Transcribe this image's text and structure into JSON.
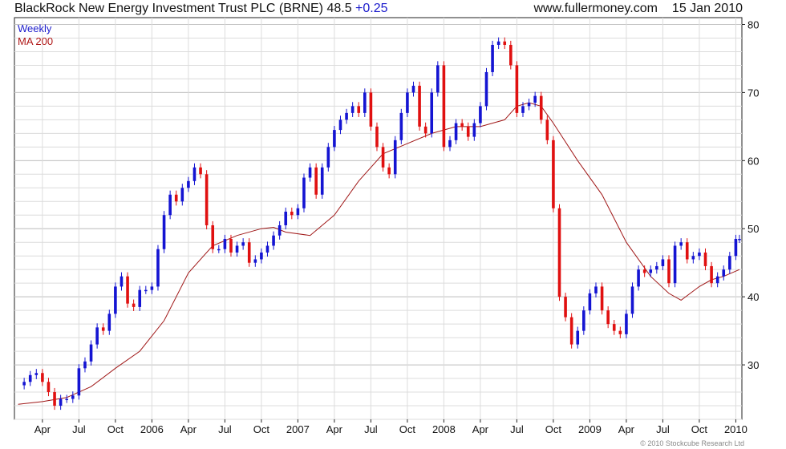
{
  "header": {
    "title": "BlackRock New Energy Investment Trust PLC (BRNE) 48.5",
    "change": "+0.25",
    "site": "www.fullermoney.com",
    "date": "15 Jan 2010"
  },
  "legend": {
    "line1": "Weekly",
    "line2": "MA 200"
  },
  "footer": {
    "copyright": "© 2010 Stockcube Research Ltd"
  },
  "colors": {
    "up": "#1414d2",
    "down": "#e01010",
    "ma": "#a01818",
    "grid": "#dcdcdc"
  },
  "chart_data": {
    "type": "line",
    "title": "BlackRock New Energy Investment Trust PLC (BRNE) 48.5 +0.25",
    "frequency": "Weekly",
    "ylim": [
      22,
      81
    ],
    "y_ticks": [
      30,
      40,
      50,
      60,
      70,
      80
    ],
    "x_ticks": [
      "Apr",
      "Jul",
      "Oct",
      "2006",
      "Apr",
      "Jul",
      "Oct",
      "2007",
      "Apr",
      "Jul",
      "Oct",
      "2008",
      "Apr",
      "Jul",
      "Oct",
      "2009",
      "Apr",
      "Jul",
      "Oct",
      "2010"
    ],
    "x_tick_months": [
      2,
      5,
      8,
      11,
      14,
      17,
      20,
      23,
      26,
      29,
      32,
      35,
      38,
      41,
      44,
      47,
      50,
      53,
      56,
      59
    ],
    "x_range_months": [
      -0.3,
      59.5
    ],
    "price_series": {
      "name": "Weekly",
      "points": [
        [
          0.0,
          27.0
        ],
        [
          0.5,
          27.5
        ],
        [
          1.0,
          28.5
        ],
        [
          1.5,
          28.8
        ],
        [
          2.0,
          27.5
        ],
        [
          2.5,
          26.0
        ],
        [
          3.0,
          24.0
        ],
        [
          3.5,
          25.0
        ],
        [
          4.0,
          25.0
        ],
        [
          4.5,
          25.5
        ],
        [
          5.0,
          29.5
        ],
        [
          5.5,
          30.5
        ],
        [
          6.0,
          33.0
        ],
        [
          6.5,
          35.5
        ],
        [
          7.0,
          35.0
        ],
        [
          7.5,
          37.5
        ],
        [
          8.0,
          41.5
        ],
        [
          8.5,
          43.0
        ],
        [
          9.0,
          39.0
        ],
        [
          9.5,
          38.5
        ],
        [
          10.0,
          41.0
        ],
        [
          10.5,
          41.0
        ],
        [
          11.0,
          41.5
        ],
        [
          11.5,
          47.0
        ],
        [
          12.0,
          52.0
        ],
        [
          12.5,
          55.0
        ],
        [
          13.0,
          54.0
        ],
        [
          13.5,
          56.0
        ],
        [
          14.0,
          57.0
        ],
        [
          14.5,
          59.0
        ],
        [
          15.0,
          58.0
        ],
        [
          15.5,
          50.5
        ],
        [
          16.0,
          47.0
        ],
        [
          16.5,
          47.0
        ],
        [
          17.0,
          48.5
        ],
        [
          17.5,
          46.5
        ],
        [
          18.0,
          47.5
        ],
        [
          18.5,
          48.0
        ],
        [
          19.0,
          45.0
        ],
        [
          19.5,
          45.5
        ],
        [
          20.0,
          46.5
        ],
        [
          20.5,
          47.5
        ],
        [
          21.0,
          49.0
        ],
        [
          21.5,
          50.5
        ],
        [
          22.0,
          52.5
        ],
        [
          22.5,
          52.0
        ],
        [
          23.0,
          53.0
        ],
        [
          23.5,
          57.5
        ],
        [
          24.0,
          59.0
        ],
        [
          24.5,
          55.0
        ],
        [
          25.0,
          59.0
        ],
        [
          25.5,
          62.0
        ],
        [
          26.0,
          64.5
        ],
        [
          26.5,
          66.0
        ],
        [
          27.0,
          67.0
        ],
        [
          27.5,
          68.0
        ],
        [
          28.0,
          67.0
        ],
        [
          28.5,
          70.0
        ],
        [
          29.0,
          65.0
        ],
        [
          29.5,
          62.0
        ],
        [
          30.0,
          59.0
        ],
        [
          30.5,
          58.0
        ],
        [
          31.0,
          63.0
        ],
        [
          31.5,
          67.0
        ],
        [
          32.0,
          70.0
        ],
        [
          32.5,
          71.0
        ],
        [
          33.0,
          65.0
        ],
        [
          33.5,
          64.0
        ],
        [
          34.0,
          70.0
        ],
        [
          34.5,
          74.0
        ],
        [
          35.0,
          62.0
        ],
        [
          35.5,
          63.0
        ],
        [
          36.0,
          65.5
        ],
        [
          36.5,
          65.0
        ],
        [
          37.0,
          63.5
        ],
        [
          37.5,
          65.5
        ],
        [
          38.0,
          68.0
        ],
        [
          38.5,
          73.0
        ],
        [
          39.0,
          77.0
        ],
        [
          39.5,
          77.5
        ],
        [
          40.0,
          77.0
        ],
        [
          40.5,
          74.0
        ],
        [
          41.0,
          67.0
        ],
        [
          41.5,
          68.0
        ],
        [
          42.0,
          68.5
        ],
        [
          42.5,
          69.5
        ],
        [
          43.0,
          66.0
        ],
        [
          43.5,
          63.0
        ],
        [
          44.0,
          53.0
        ],
        [
          44.5,
          40.0
        ],
        [
          45.0,
          37.0
        ],
        [
          45.5,
          33.0
        ],
        [
          46.0,
          35.0
        ],
        [
          46.5,
          38.0
        ],
        [
          47.0,
          40.5
        ],
        [
          47.5,
          41.5
        ],
        [
          48.0,
          38.0
        ],
        [
          48.5,
          36.0
        ],
        [
          49.0,
          35.0
        ],
        [
          49.5,
          34.5
        ],
        [
          50.0,
          37.5
        ],
        [
          50.5,
          41.5
        ],
        [
          51.0,
          44.0
        ],
        [
          51.5,
          43.5
        ],
        [
          52.0,
          44.0
        ],
        [
          52.5,
          44.5
        ],
        [
          53.0,
          45.5
        ],
        [
          53.5,
          42.0
        ],
        [
          54.0,
          47.5
        ],
        [
          54.5,
          48.0
        ],
        [
          55.0,
          45.5
        ],
        [
          55.5,
          46.0
        ],
        [
          56.0,
          46.5
        ],
        [
          56.5,
          44.5
        ],
        [
          57.0,
          42.0
        ],
        [
          57.5,
          43.0
        ],
        [
          58.0,
          44.0
        ],
        [
          58.5,
          46.0
        ],
        [
          59.0,
          48.5
        ],
        [
          59.3,
          48.5
        ]
      ]
    },
    "ma_series": {
      "name": "MA 200",
      "points": [
        [
          0.0,
          24.2
        ],
        [
          2.0,
          24.6
        ],
        [
          4.0,
          25.2
        ],
        [
          6.0,
          26.8
        ],
        [
          8.0,
          29.5
        ],
        [
          10.0,
          32.0
        ],
        [
          12.0,
          36.5
        ],
        [
          14.0,
          43.5
        ],
        [
          16.0,
          47.5
        ],
        [
          18.0,
          49.0
        ],
        [
          20.0,
          50.0
        ],
        [
          21.0,
          50.2
        ],
        [
          22.0,
          49.5
        ],
        [
          24.0,
          49.0
        ],
        [
          26.0,
          52.0
        ],
        [
          28.0,
          57.0
        ],
        [
          30.0,
          61.0
        ],
        [
          32.0,
          62.5
        ],
        [
          34.0,
          64.0
        ],
        [
          36.0,
          65.0
        ],
        [
          38.0,
          65.0
        ],
        [
          40.0,
          66.0
        ],
        [
          41.0,
          68.0
        ],
        [
          42.0,
          68.5
        ],
        [
          43.0,
          68.0
        ],
        [
          44.0,
          65.5
        ],
        [
          46.0,
          60.0
        ],
        [
          48.0,
          55.0
        ],
        [
          50.0,
          48.0
        ],
        [
          52.0,
          43.0
        ],
        [
          53.5,
          40.5
        ],
        [
          54.5,
          39.5
        ],
        [
          56.0,
          41.5
        ],
        [
          57.0,
          42.5
        ],
        [
          58.0,
          43.0
        ],
        [
          59.3,
          44.0
        ]
      ]
    }
  }
}
